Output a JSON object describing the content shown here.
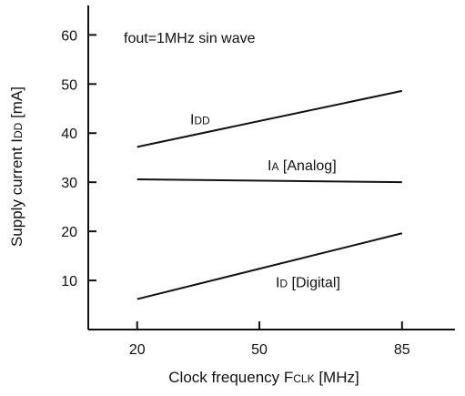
{
  "chart_data": {
    "type": "line",
    "annotation": "fout=1MHz sin wave",
    "xlabel": {
      "main": "Clock frequency F",
      "sub": "CLK",
      "tail": " [MHz]"
    },
    "ylabel": {
      "main": "Supply current I",
      "sub": "DD",
      "tail": " [mA]"
    },
    "x_ticks": [
      20,
      50,
      85
    ],
    "y_ticks": [
      10,
      20,
      30,
      40,
      50,
      60
    ],
    "xlim": [
      8,
      98
    ],
    "ylim": [
      0,
      66
    ],
    "grid": false,
    "series": [
      {
        "name": "IDD",
        "label": {
          "main": "I",
          "sub": "DD",
          "tail": ""
        },
        "x": [
          20,
          85
        ],
        "y": [
          37.2,
          48.6
        ]
      },
      {
        "name": "IA [Analog]",
        "label": {
          "main": "I",
          "sub": "A",
          "tail": " [Analog]"
        },
        "x": [
          20,
          85
        ],
        "y": [
          30.6,
          30.0
        ]
      },
      {
        "name": "ID [Digital]",
        "label": {
          "main": "I",
          "sub": "D",
          "tail": " [Digital]"
        },
        "x": [
          20,
          85
        ],
        "y": [
          6.2,
          19.6
        ]
      }
    ],
    "colors": {
      "line": "#111111",
      "axis": "#111111"
    }
  }
}
